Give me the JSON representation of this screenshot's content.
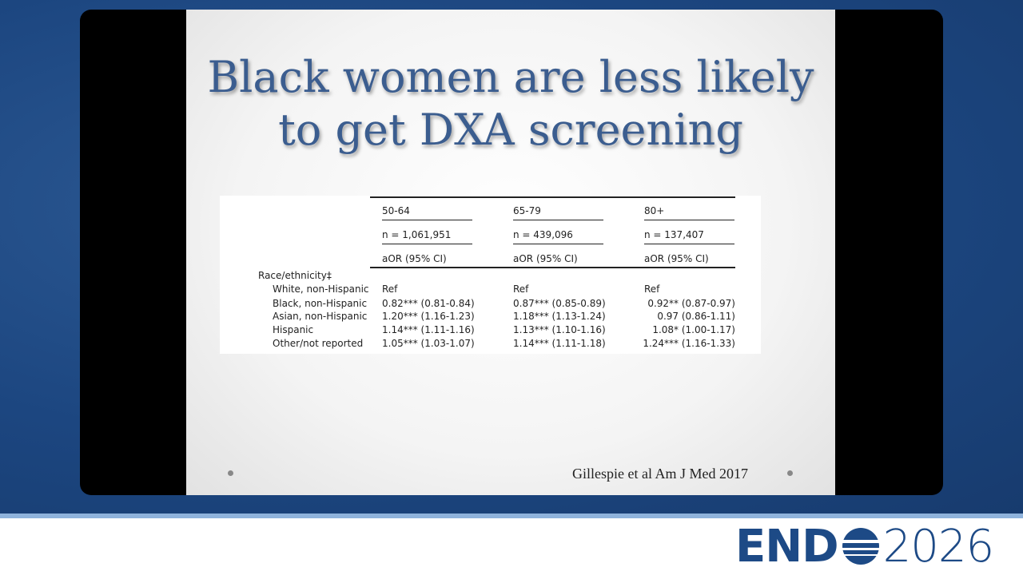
{
  "slide": {
    "title_lines": [
      "Black women are less likely",
      "to get DXA screening"
    ],
    "table": {
      "header_rows": [
        [
          "50-64",
          "65-79",
          "80+"
        ],
        [
          "n = 1,061,951",
          "n = 439,096",
          "n = 137,407"
        ],
        [
          "aOR (95% CI)",
          "aOR (95% CI)",
          "aOR (95% CI)"
        ]
      ],
      "section": "Race/ethnicity‡",
      "rows": [
        [
          "White, non-Hispanic",
          "Ref",
          "Ref",
          "Ref"
        ],
        [
          "Black, non-Hispanic",
          "0.82*** (0.81-0.84)",
          "0.87*** (0.85-0.89)",
          "0.92** (0.87-0.97)"
        ],
        [
          "Asian, non-Hispanic",
          "1.20*** (1.16-1.23)",
          "1.18*** (1.13-1.24)",
          "0.97 (0.86-1.11)"
        ],
        [
          "Hispanic",
          "1.14*** (1.11-1.16)",
          "1.13*** (1.10-1.16)",
          "1.08* (1.00-1.17)"
        ],
        [
          "Other/not reported",
          "1.05*** (1.03-1.07)",
          "1.14*** (1.11-1.18)",
          "1.24*** (1.16-1.33)"
        ]
      ]
    },
    "citation": "Gillespie et al Am J Med 2017"
  },
  "logo": {
    "left": "END",
    "right": "2026"
  }
}
